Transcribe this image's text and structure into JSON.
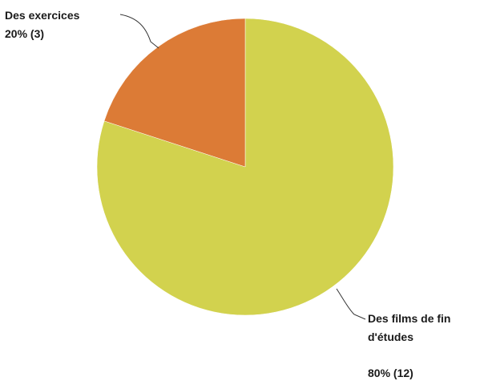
{
  "chart_data": {
    "type": "pie",
    "slices": [
      {
        "label": "Des films de fin d'études",
        "label_lines": [
          "Des films de fin",
          "d'études"
        ],
        "value": 12,
        "percent_text": "80% (12)",
        "color": "#d2d24e"
      },
      {
        "label": "Des exercices",
        "label_lines": [
          "Des exercices"
        ],
        "value": 3,
        "percent_text": "20% (3)",
        "color": "#dc7b36"
      }
    ],
    "start_angle_deg": 0,
    "direction": "clockwise",
    "legend": "none"
  }
}
